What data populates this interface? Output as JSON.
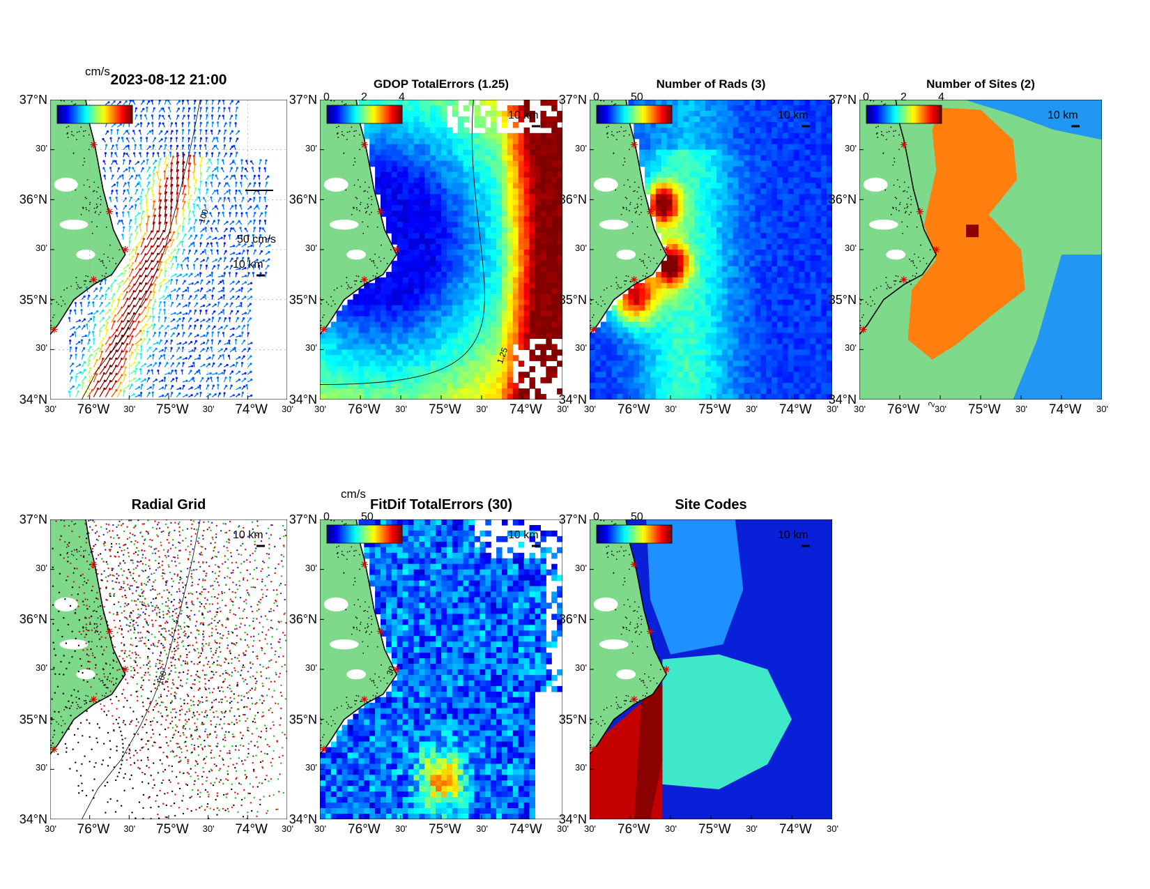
{
  "axes": {
    "lat_labels": [
      "37°N",
      "30'",
      "36°N",
      "30'",
      "35°N",
      "30'",
      "34°N"
    ],
    "lon_labels": [
      "30'",
      "76°W",
      "30'",
      "75°W",
      "30'",
      "74°W",
      "30'"
    ]
  },
  "scale_bar_label": "10 km",
  "panels": [
    {
      "id": "totals",
      "title": "2023-08-12 21:00",
      "units": "cm/s",
      "ref_vector": "50 cm/s",
      "contour_label": "100",
      "colorbar": {
        "ticks": []
      },
      "chart_data": {
        "type": "heatmap",
        "title": "2023-08-12 21:00",
        "units": "cm/s",
        "xlim": [
          -76.5,
          -73.5
        ],
        "ylim": [
          34,
          37
        ]
      }
    },
    {
      "id": "gdop",
      "title": "GDOP TotalErrors (1.25)",
      "units": "",
      "contour_label": "1.25",
      "colorbar": {
        "ticks": [
          "0",
          "2",
          "4"
        ]
      },
      "chart_data": {
        "type": "heatmap",
        "title": "GDOP TotalErrors (1.25)",
        "colorbar_range": [
          0,
          4
        ],
        "contour_level": 1.25,
        "xlim": [
          -76.5,
          -73.5
        ],
        "ylim": [
          34,
          37
        ]
      }
    },
    {
      "id": "nrads",
      "title": "Number of Rads (3)",
      "units": "",
      "colorbar": {
        "ticks": [
          "0",
          "50"
        ]
      },
      "chart_data": {
        "type": "heatmap",
        "title": "Number of Rads (3)",
        "colorbar_range": [
          0,
          100
        ],
        "contour_level": 3,
        "xlim": [
          -76.5,
          -73.5
        ],
        "ylim": [
          34,
          37
        ]
      }
    },
    {
      "id": "nsites",
      "title": "Number of Sites (2)",
      "units": "",
      "contour_label": "2",
      "colorbar": {
        "ticks": [
          "0",
          "2",
          "4"
        ]
      },
      "chart_data": {
        "type": "heatmap",
        "title": "Number of Sites (2)",
        "colorbar_range": [
          0,
          4
        ],
        "contour_level": 2,
        "xlim": [
          -76.5,
          -73.5
        ],
        "ylim": [
          34,
          37
        ]
      }
    },
    {
      "id": "radgrid",
      "title": "Radial Grid",
      "units": "",
      "contour_label": "100",
      "colorbar": {
        "ticks": []
      },
      "chart_data": {
        "type": "scatter",
        "title": "Radial Grid",
        "xlim": [
          -76.5,
          -73.5
        ],
        "ylim": [
          34,
          37
        ]
      }
    },
    {
      "id": "fitdif",
      "title": "FitDif TotalErrors (30)",
      "units": "cm/s",
      "contour_label": "30",
      "colorbar": {
        "ticks": [
          "0",
          "50"
        ]
      },
      "chart_data": {
        "type": "heatmap",
        "title": "FitDif TotalErrors (30)",
        "units": "cm/s",
        "colorbar_range": [
          0,
          100
        ],
        "contour_level": 30,
        "xlim": [
          -76.5,
          -73.5
        ],
        "ylim": [
          34,
          37
        ]
      }
    },
    {
      "id": "sitecodes",
      "title": "Site Codes",
      "units": "",
      "colorbar": {
        "ticks": [
          "0",
          "50"
        ]
      },
      "chart_data": {
        "type": "heatmap",
        "title": "Site Codes",
        "colorbar_range": [
          0,
          100
        ],
        "xlim": [
          -76.5,
          -73.5
        ],
        "ylim": [
          34,
          37
        ]
      }
    }
  ],
  "colors": {
    "land": "#7fd98a",
    "coast": "#000000",
    "site_marker": "#e00000",
    "white": "#ffffff"
  }
}
